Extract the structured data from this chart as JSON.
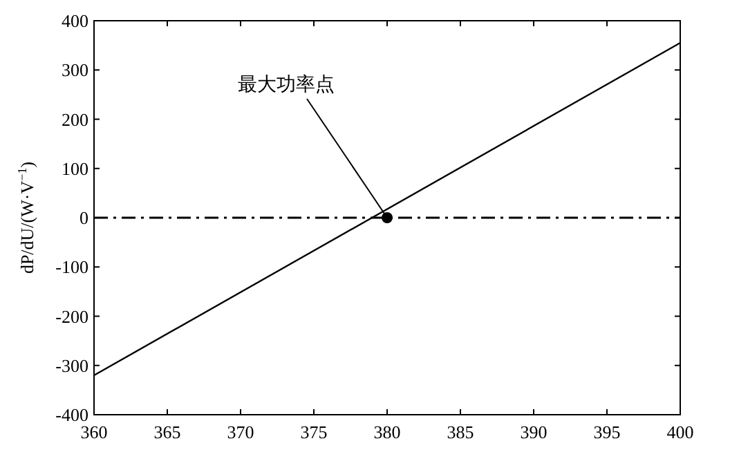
{
  "chart_data": {
    "type": "line",
    "ylabel": "dP/dU/(W·V$^{−1}$)",
    "x": [
      360,
      400
    ],
    "series": [
      {
        "color": "#000000",
        "values": [
          -320,
          355
        ]
      },
      {
        "type": "scatter",
        "x": [
          380
        ],
        "values": [
          0
        ],
        "color": "#000000"
      }
    ],
    "xlim": [
      360,
      400
    ],
    "xticks": [
      360,
      365,
      370,
      375,
      380,
      385,
      390,
      395,
      400
    ],
    "ylim": [
      -400,
      400
    ],
    "yticks": [
      -400,
      -300,
      -200,
      -100,
      0,
      100,
      200,
      300,
      400
    ],
    "ref_lines": [
      {
        "axis": "y",
        "value": 0,
        "color": "#000000",
        "line_style": "dashdot"
      }
    ],
    "annotations": [
      {
        "text": "最大功率点",
        "x": 380,
        "y": 0
      }
    ],
    "grid": false
  }
}
